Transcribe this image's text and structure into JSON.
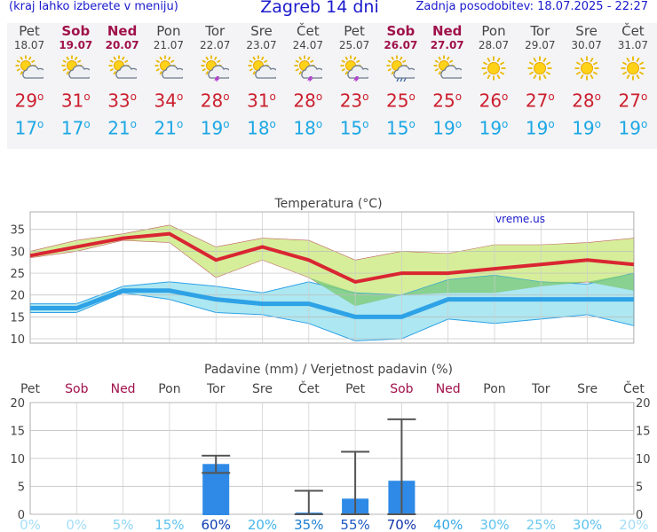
{
  "header": {
    "hint": "(kraj lahko izberete v meniju)",
    "title": "Zagreb 14 dni",
    "updated": "Zadnja posodobitev: 18.07.2025 - 22:27"
  },
  "days": [
    {
      "name": "Pet",
      "date": "18.07",
      "weekend": false,
      "icon": "sun-cloud-icon",
      "max": "29",
      "min": "17"
    },
    {
      "name": "Sob",
      "date": "19.07",
      "weekend": true,
      "icon": "sun-cloud-icon",
      "max": "31",
      "min": "17"
    },
    {
      "name": "Ned",
      "date": "20.07",
      "weekend": true,
      "icon": "sun-cloud-icon",
      "max": "33",
      "min": "21"
    },
    {
      "name": "Pon",
      "date": "21.07",
      "weekend": false,
      "icon": "sun-cloud-icon",
      "max": "34",
      "min": "21"
    },
    {
      "name": "Tor",
      "date": "22.07",
      "weekend": false,
      "icon": "sun-cloud-thunder-icon",
      "max": "28",
      "min": "19"
    },
    {
      "name": "Sre",
      "date": "23.07",
      "weekend": false,
      "icon": "sun-cloud-icon",
      "max": "31",
      "min": "18"
    },
    {
      "name": "Čet",
      "date": "24.07",
      "weekend": false,
      "icon": "sun-cloud-thunder-icon",
      "max": "28",
      "min": "18"
    },
    {
      "name": "Pet",
      "date": "25.07",
      "weekend": false,
      "icon": "sun-cloud-thunder-icon",
      "max": "23",
      "min": "15"
    },
    {
      "name": "Sob",
      "date": "26.07",
      "weekend": true,
      "icon": "sun-cloud-rain-icon",
      "max": "25",
      "min": "15"
    },
    {
      "name": "Ned",
      "date": "27.07",
      "weekend": true,
      "icon": "sun-cloud-icon",
      "max": "25",
      "min": "19"
    },
    {
      "name": "Pon",
      "date": "28.07",
      "weekend": false,
      "icon": "sun-icon",
      "max": "26",
      "min": "19"
    },
    {
      "name": "Tor",
      "date": "29.07",
      "weekend": false,
      "icon": "sun-icon",
      "max": "27",
      "min": "19"
    },
    {
      "name": "Sre",
      "date": "30.07",
      "weekend": false,
      "icon": "sun-icon",
      "max": "28",
      "min": "19"
    },
    {
      "name": "Čet",
      "date": "31.07",
      "weekend": false,
      "icon": "sun-icon",
      "max": "27",
      "min": "19"
    }
  ],
  "chart_data": [
    {
      "type": "line",
      "title": "Temperatura (°C)",
      "watermark": "vreme.us",
      "categories": [
        "Pet",
        "Sob",
        "Ned",
        "Pon",
        "Tor",
        "Sre",
        "Čet",
        "Pet",
        "Sob",
        "Ned",
        "Pon",
        "Tor",
        "Sre",
        "Čet"
      ],
      "ylim": [
        9,
        39
      ],
      "yticks": [
        10,
        15,
        20,
        25,
        30,
        35
      ],
      "series": [
        {
          "role": "max",
          "color": "#d92632",
          "values": [
            29,
            31,
            33,
            34,
            28,
            31,
            28,
            23,
            25,
            25,
            26,
            27,
            28,
            27
          ]
        },
        {
          "role": "min",
          "color": "#2ea2e6",
          "values": [
            17,
            17,
            21,
            21,
            19,
            18,
            18,
            15,
            15,
            19,
            19,
            19,
            19,
            19
          ]
        },
        {
          "role": "max_band_upper",
          "values": [
            30,
            32.5,
            34,
            36,
            31,
            33,
            32.5,
            28,
            30,
            29.5,
            31.5,
            31.5,
            32,
            33
          ]
        },
        {
          "role": "max_band_lower",
          "values": [
            28.5,
            30,
            32.5,
            32,
            24,
            28,
            24,
            17.5,
            20,
            20.5,
            20.5,
            22,
            23,
            21
          ]
        },
        {
          "role": "min_band_upper",
          "values": [
            18,
            18,
            22,
            23,
            22,
            20.5,
            23,
            20.5,
            20,
            23.5,
            24.5,
            23,
            22.5,
            25
          ]
        },
        {
          "role": "min_band_lower",
          "values": [
            16,
            16,
            20.5,
            19,
            16,
            15.5,
            13.5,
            9.5,
            10,
            14.5,
            13.5,
            14.5,
            15.5,
            13
          ]
        }
      ],
      "colors": {
        "max_band": "#d6ee9a",
        "overlap_band": "#7fcc7a",
        "min_band": "#a4e4f0"
      },
      "grid": true
    },
    {
      "type": "bar",
      "title": "Padavine (mm) / Verjetnost padavin (%)",
      "categories": [
        "Pet",
        "Sob",
        "Ned",
        "Pon",
        "Tor",
        "Sre",
        "Čet",
        "Pet",
        "Sob",
        "Ned",
        "Pon",
        "Tor",
        "Sre",
        "Čet"
      ],
      "ylim": [
        0,
        20
      ],
      "yticks": [
        0,
        5,
        10,
        15,
        20
      ],
      "values": [
        0,
        0,
        0,
        0,
        9,
        0,
        0.3,
        2.8,
        6,
        0,
        0,
        0,
        0,
        0
      ],
      "error_high": [
        null,
        null,
        null,
        null,
        10.5,
        null,
        4.2,
        11.2,
        17,
        null,
        null,
        null,
        null,
        null
      ],
      "error_low": [
        null,
        null,
        null,
        null,
        7.4,
        null,
        0,
        0,
        0,
        null,
        null,
        null,
        null,
        null
      ],
      "probability_labels": [
        "0%",
        "0%",
        "5%",
        "15%",
        "60%",
        "20%",
        "35%",
        "55%",
        "70%",
        "40%",
        "30%",
        "25%",
        "30%",
        "20%"
      ],
      "probability_label_colors": [
        "#a4def7",
        "#a4def7",
        "#8bd4f4",
        "#5cc2ee",
        "#0b3cb3",
        "#45b6ea",
        "#1e7fd3",
        "#1b56c2",
        "#1233aa",
        "#31a9e5",
        "#5cc2ee",
        "#6ec9f0",
        "#5cc2ee",
        "#a4def7"
      ],
      "bar_color": "#2e8ae6"
    }
  ]
}
